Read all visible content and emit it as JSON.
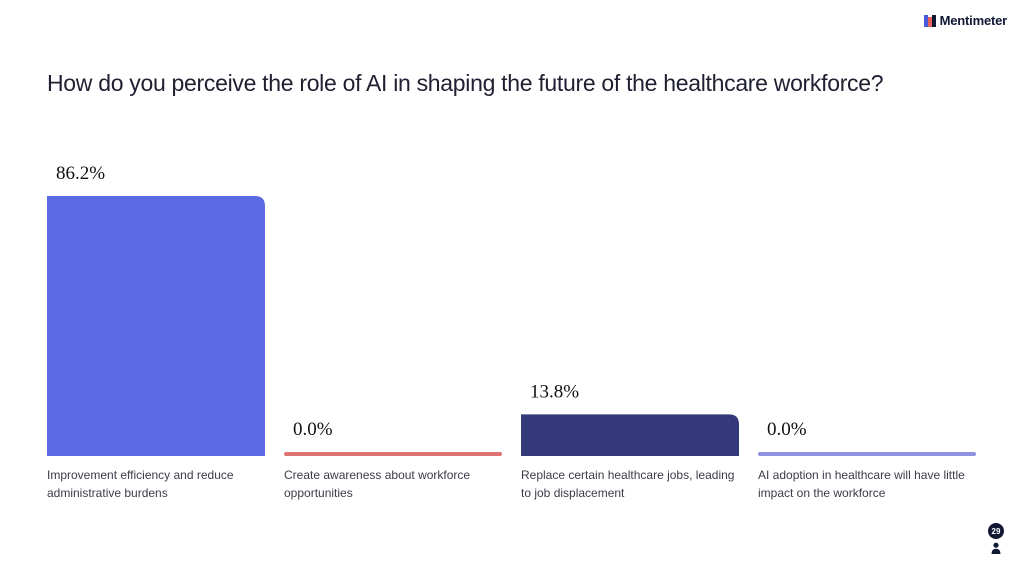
{
  "brand": {
    "name": "Mentimeter"
  },
  "question": "How do you perceive the role of AI in shaping the future of the healthcare workforce?",
  "participants": {
    "count": "29",
    "icon": "person-icon"
  },
  "chart_data": {
    "type": "bar",
    "categories": [
      "Improvement efficiency and reduce administrative burdens",
      "Create awareness about workforce opportunities",
      "Replace certain healthcare jobs, leading to job displacement",
      "AI adoption in healthcare will have little impact on the workforce"
    ],
    "values": [
      86.2,
      0.0,
      13.8,
      0.0
    ],
    "value_labels": [
      "86.2%",
      "0.0%",
      "13.8%",
      "0.0%"
    ],
    "colors": [
      "#5b69e2",
      "#de7373",
      "#343a79",
      "#8f93e3"
    ],
    "ylim": [
      0,
      86.2
    ],
    "grid": false,
    "legend": "none"
  }
}
